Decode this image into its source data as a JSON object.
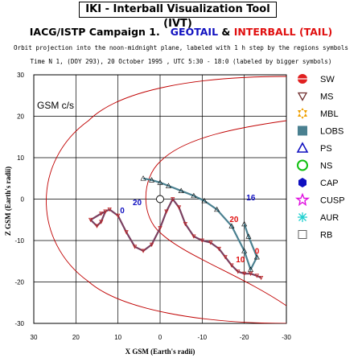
{
  "header": {
    "title": "IKI - Interball Visualization Tool (IVT)",
    "campaign": "IACG/ISTP Campaign 1.",
    "geotail": "GEOTAIL",
    "amp": "&",
    "interball": "INTERBALL (TAIL)",
    "subtitle1": "Orbit projection into the noon-midnight plane, labeled with 1 h step by the regions symbols",
    "subtitle2": "Time N 1, (DOY 293), 20 October  1995 ,  UTC 5:30 - 18:0 (labeled by bigger symbols)"
  },
  "colors": {
    "geotail": "#1010c0",
    "interball": "#e01010",
    "grid": "#000000",
    "boundary": "#c00000",
    "track_gray": "#606060",
    "lobs_fill": "#4a8090"
  },
  "legend": [
    {
      "label": "SW",
      "icon": "sun-icon"
    },
    {
      "label": "MS",
      "icon": "down-triangle-icon"
    },
    {
      "label": "MBL",
      "icon": "orange-star-icon"
    },
    {
      "label": "LOBS",
      "icon": "teal-square-icon"
    },
    {
      "label": "PS",
      "icon": "blue-triangle-icon"
    },
    {
      "label": "NS",
      "icon": "green-circle-icon"
    },
    {
      "label": "CAP",
      "icon": "blue-hexagon-icon"
    },
    {
      "label": "CUSP",
      "icon": "magenta-star-icon"
    },
    {
      "label": "AUR",
      "icon": "cyan-asterisk-icon"
    },
    {
      "label": "RB",
      "icon": "gray-square-icon"
    }
  ],
  "chart_data": {
    "type": "line",
    "coord_label": "GSM c/s",
    "xlabel": "X GSM (Earth's radii)",
    "ylabel": "Z GSM (Earth's radii)",
    "xlim": [
      30,
      -30
    ],
    "ylim": [
      30,
      -30
    ],
    "xticks": [
      30,
      20,
      10,
      0,
      -10,
      -20,
      -30
    ],
    "yticks": [
      -30,
      -20,
      -10,
      0,
      10,
      20,
      30
    ],
    "grid": true,
    "tick_labels_x": [
      "30",
      "20",
      "10",
      "0",
      "-10",
      "-20",
      "-30"
    ],
    "tick_labels_y": [
      "-30",
      "-20",
      "-10",
      "0",
      "10",
      "20",
      "30"
    ],
    "series": [
      {
        "name": "GEOTAIL",
        "points": [
          [
            4,
            5
          ],
          [
            2,
            4.6
          ],
          [
            0,
            4
          ],
          [
            -2,
            3.2
          ],
          [
            -5,
            2
          ],
          [
            -8,
            0.8
          ],
          [
            -10.5,
            -0.4
          ],
          [
            -13.5,
            -2.5
          ],
          [
            -17,
            -6.5
          ],
          [
            -20,
            -12.5
          ],
          [
            -21.5,
            -17
          ],
          [
            -23,
            -14
          ],
          [
            -21,
            -9
          ],
          [
            -20,
            -6
          ]
        ]
      },
      {
        "name": "INTERBALL (TAIL)",
        "points": [
          [
            13,
            -3
          ],
          [
            14,
            -5.5
          ],
          [
            15,
            -6.5
          ],
          [
            16.5,
            -5
          ],
          [
            14,
            -3.5
          ],
          [
            12,
            -2.5
          ],
          [
            10,
            -4
          ],
          [
            8,
            -8
          ],
          [
            6,
            -11.5
          ],
          [
            4,
            -12.5
          ],
          [
            2,
            -11
          ],
          [
            0,
            -7
          ],
          [
            -1.5,
            -3
          ],
          [
            -3,
            0
          ],
          [
            -4.5,
            -2
          ],
          [
            -6,
            -6
          ],
          [
            -8,
            -9
          ],
          [
            -10,
            -10
          ],
          [
            -12,
            -10.5
          ],
          [
            -14,
            -12
          ],
          [
            -15.5,
            -14
          ],
          [
            -17,
            -16
          ],
          [
            -18.5,
            -17.5
          ],
          [
            -20,
            -18
          ],
          [
            -21.5,
            -18
          ],
          [
            -23,
            -18.5
          ],
          [
            -24,
            -19
          ]
        ]
      }
    ],
    "annotations": [
      {
        "text": "0",
        "x": 9.5,
        "y": -3.4,
        "color": "blue"
      },
      {
        "text": "20",
        "x": 6.5,
        "y": -1.5,
        "color": "blue"
      },
      {
        "text": "10",
        "x": -18,
        "y": -15.2,
        "color": "red"
      },
      {
        "text": "0",
        "x": -22.5,
        "y": -13.2,
        "color": "red"
      },
      {
        "text": "20",
        "x": -16.5,
        "y": -5.5,
        "color": "red"
      },
      {
        "text": "16",
        "x": -20.5,
        "y": -0.3,
        "color": "blue"
      }
    ]
  }
}
